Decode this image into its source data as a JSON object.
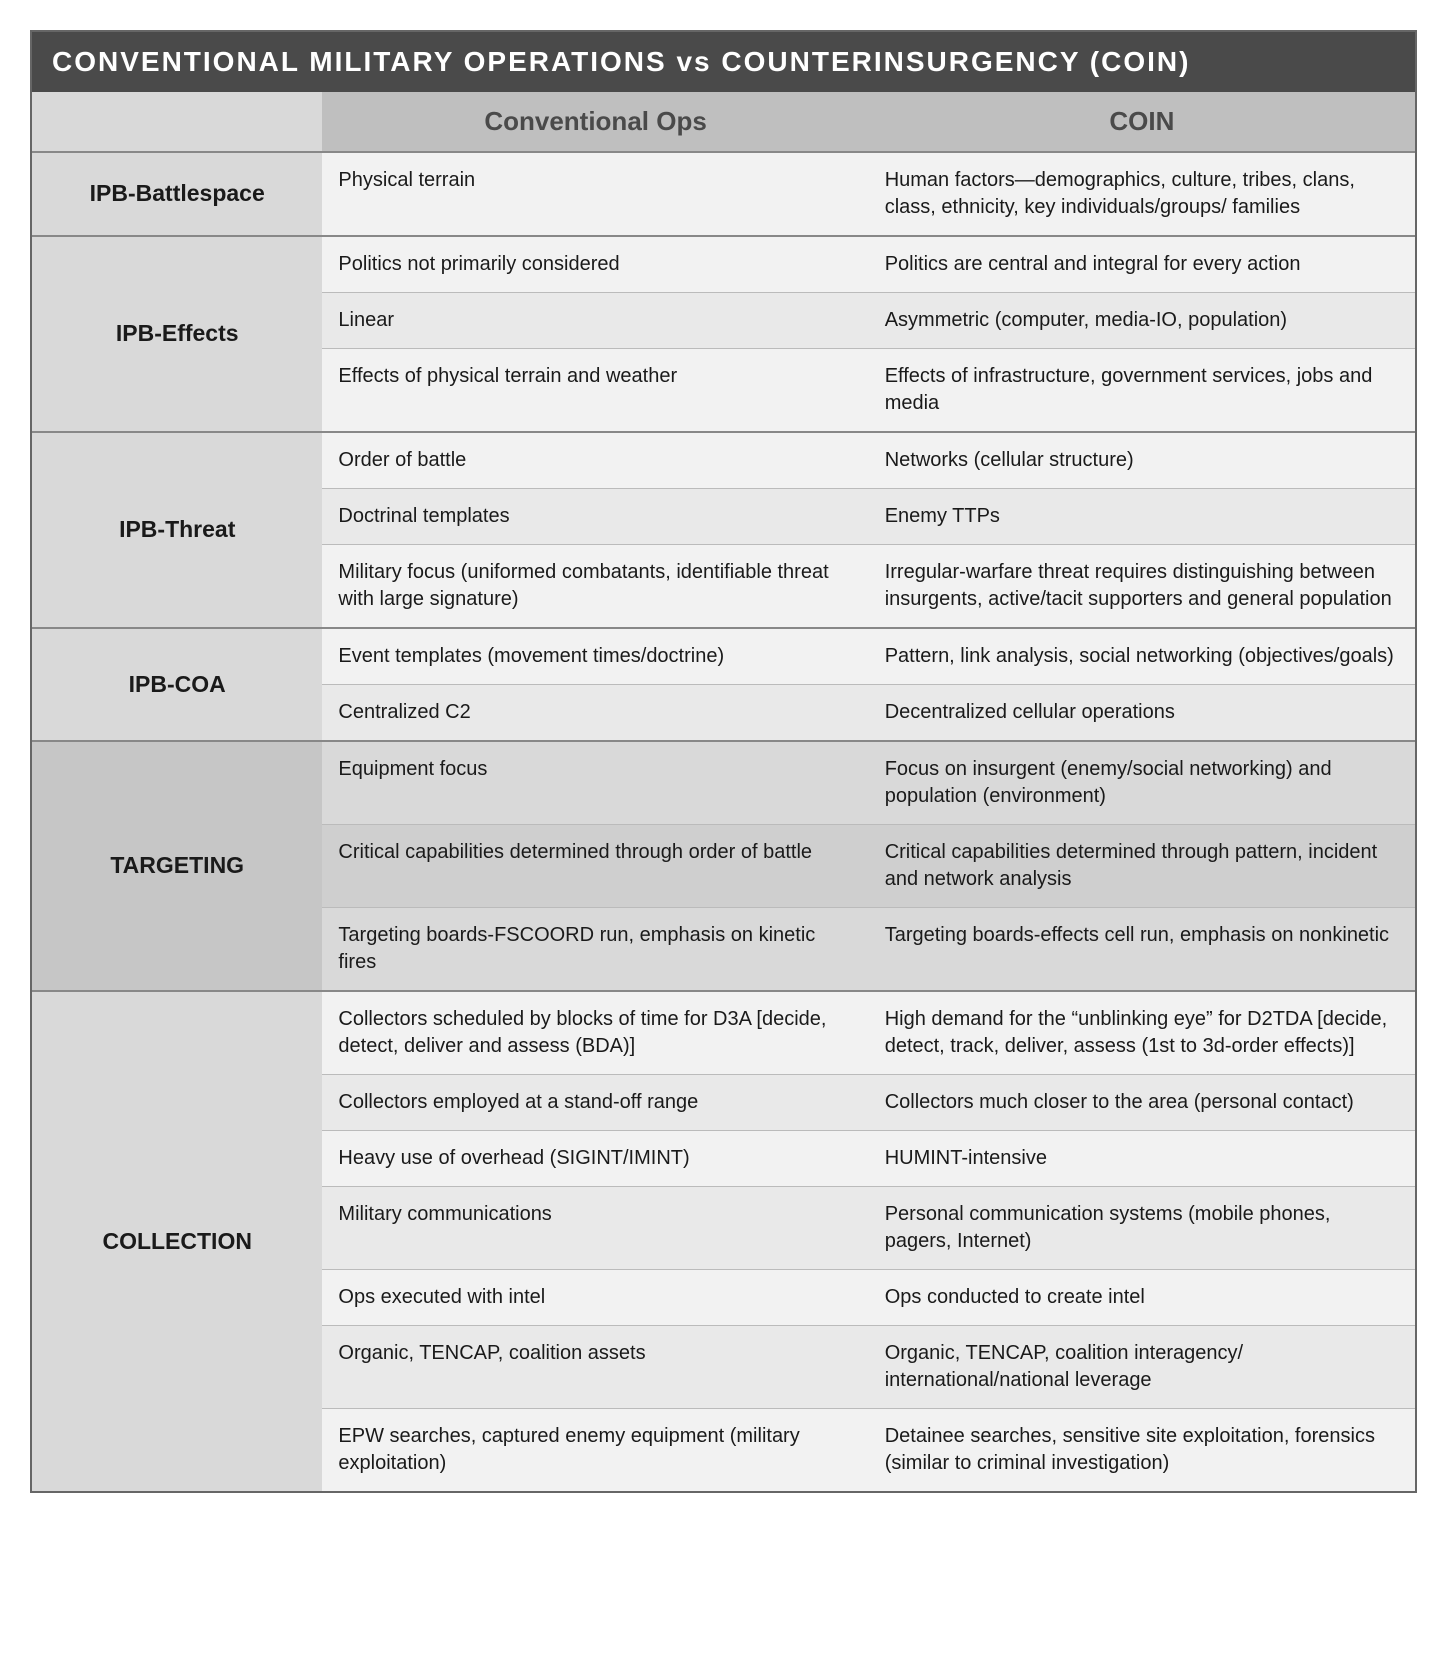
{
  "title": "CONVENTIONAL MILITARY OPERATIONS vs COUNTERINSURGENCY (COIN)",
  "columns": {
    "blank": "",
    "conv": "Conventional Ops",
    "coin": "COIN"
  },
  "colors": {
    "title_bg": "#4a4a4a",
    "title_fg": "#ffffff",
    "header_bg": "#bfbfbf",
    "header_fg": "#4a4a4a",
    "label_bg": "#d9d9d9",
    "row_light": "#f2f2f2",
    "row_light2": "#e9e9e9",
    "row_dark": "#d9d9d9",
    "row_dark2": "#cfcfcf",
    "border_major": "#888888",
    "border_minor": "#bbbbbb",
    "text": "#1a1a1a"
  },
  "fontsize": {
    "title": 28,
    "col_header": 26,
    "row_label": 23,
    "cell": 20
  },
  "sections": [
    {
      "label": "IPB-Battlespace",
      "tone": "a",
      "rows": [
        {
          "conv": "Physical terrain",
          "coin": "Human factors—demographics, culture, tribes, clans, class, ethnicity, key individuals/groups/ families"
        }
      ]
    },
    {
      "label": "IPB-Effects",
      "tone": "a",
      "rows": [
        {
          "conv": "Politics not primarily considered",
          "coin": "Politics are central and integral for every action"
        },
        {
          "conv": "Linear",
          "coin": "Asymmetric (computer, media-IO, population)"
        },
        {
          "conv": "Effects of physical terrain and weather",
          "coin": "Effects of infrastructure, government services,  jobs and media"
        }
      ]
    },
    {
      "label": "IPB-Threat",
      "tone": "a",
      "rows": [
        {
          "conv": "Order of battle",
          "coin": "Networks (cellular structure)"
        },
        {
          "conv": "Doctrinal templates",
          "coin": "Enemy TTPs"
        },
        {
          "conv": "Military focus (uniformed combatants, identifiable threat with large signature)",
          "coin": "Irregular-warfare threat requires distinguishing between insurgents, active/tacit supporters and general population"
        }
      ]
    },
    {
      "label": "IPB-COA",
      "tone": "a",
      "rows": [
        {
          "conv": "Event templates (movement times/doctrine)",
          "coin": "Pattern, link analysis, social networking (objectives/goals)"
        },
        {
          "conv": "Centralized C2",
          "coin": "Decentralized cellular operations"
        }
      ]
    },
    {
      "label": "TARGETING",
      "tone": "b",
      "label_darker": true,
      "rows": [
        {
          "conv": "Equipment focus",
          "coin": "Focus on insurgent (enemy/social networking) and population (environment)"
        },
        {
          "conv": "Critical capabilities determined through order of battle",
          "coin": "Critical capabilities determined through pattern, incident and network analysis"
        },
        {
          "conv": "Targeting boards-FSCOORD run, emphasis on kinetic fires",
          "coin": "Targeting boards-effects cell run, emphasis on nonkinetic"
        }
      ]
    },
    {
      "label": "COLLECTION",
      "tone": "a",
      "rows": [
        {
          "conv": "Collectors scheduled by blocks of time for D3A [decide, detect, deliver and assess (BDA)]",
          "coin": "High demand for the “unblinking eye” for D2TDA [decide, detect, track, deliver, assess (1st to 3d-order effects)]"
        },
        {
          "conv": "Collectors employed at a stand-off range",
          "coin": "Collectors much closer to the area (personal contact)"
        },
        {
          "conv": "Heavy use of overhead (SIGINT/IMINT)",
          "coin": "HUMINT-intensive"
        },
        {
          "conv": "Military communications",
          "coin": "Personal communication systems (mobile phones, pagers, Internet)"
        },
        {
          "conv": "Ops executed with intel",
          "coin": "Ops conducted to create intel"
        },
        {
          "conv": "Organic, TENCAP, coalition assets",
          "coin": "Organic, TENCAP, coalition interagency/ international/national leverage"
        },
        {
          "conv": "EPW searches, captured enemy equipment (military exploitation)",
          "coin": "Detainee searches, sensitive site exploitation, forensics (similar to criminal investigation)"
        }
      ]
    }
  ]
}
